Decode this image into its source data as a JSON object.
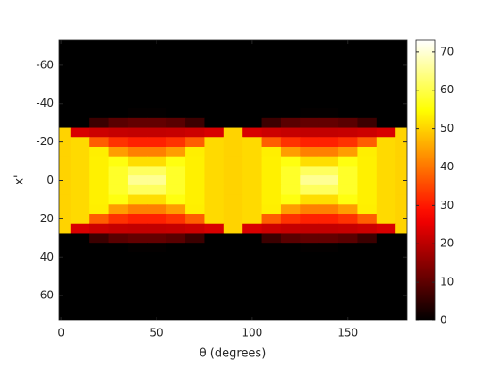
{
  "chart_data": {
    "type": "heatmap",
    "x_label": "θ (degrees)",
    "y_label": "x'",
    "colormap": "hot",
    "y_reversed": true,
    "x": [
      0,
      10,
      20,
      30,
      40,
      50,
      60,
      70,
      80,
      90,
      100,
      110,
      120,
      130,
      140,
      150,
      160,
      170,
      180
    ],
    "y": [
      -70,
      -65,
      -60,
      -55,
      -50,
      -45,
      -40,
      -35,
      -30,
      -25,
      -20,
      -15,
      -10,
      -5,
      0,
      5,
      10,
      15,
      20,
      25,
      30,
      35,
      40,
      45,
      50,
      55,
      60,
      65,
      70
    ],
    "z": [
      [
        0,
        0,
        0,
        0,
        0,
        0,
        0,
        0,
        0,
        0,
        0,
        0,
        0,
        0,
        0,
        0,
        0,
        0,
        0
      ],
      [
        0,
        0,
        0,
        0,
        0,
        0,
        0,
        0,
        0,
        0,
        0,
        0,
        0,
        0,
        0,
        0,
        0,
        0,
        0
      ],
      [
        0,
        0,
        0,
        0,
        0,
        0,
        0,
        0,
        0,
        0,
        0,
        0,
        0,
        0,
        0,
        0,
        0,
        0,
        0
      ],
      [
        0,
        0,
        0,
        0,
        0,
        0,
        0,
        0,
        0,
        0,
        0,
        0,
        0,
        0,
        0,
        0,
        0,
        0,
        0
      ],
      [
        0,
        0,
        0,
        0,
        0,
        0,
        0,
        0,
        0,
        0,
        0,
        0,
        0,
        0,
        0,
        0,
        0,
        0,
        0
      ],
      [
        0,
        0,
        0,
        0,
        0,
        0,
        0,
        0,
        0,
        0,
        0,
        0,
        0,
        0,
        0,
        0,
        0,
        0,
        0
      ],
      [
        0,
        0,
        0,
        0,
        0,
        0,
        0,
        0,
        0,
        0,
        0,
        0,
        0,
        0,
        0,
        0,
        0,
        0,
        0
      ],
      [
        0,
        0,
        0,
        0,
        0.4,
        0.4,
        0,
        0,
        0,
        0,
        0,
        0,
        0,
        0.4,
        0.4,
        0,
        0,
        0,
        0
      ],
      [
        0,
        0,
        6.3,
        9.6,
        10.6,
        10.6,
        9.6,
        6.3,
        0,
        0,
        0,
        6.3,
        9.6,
        10.6,
        10.6,
        9.6,
        6.3,
        0,
        0
      ],
      [
        50,
        23.2,
        21.9,
        21.1,
        20.8,
        20.8,
        21.1,
        21.9,
        23.2,
        50,
        23.2,
        21.9,
        21.1,
        20.8,
        20.8,
        21.1,
        21.9,
        23.2,
        50
      ],
      [
        50,
        50.8,
        37.5,
        32.7,
        30.9,
        30.9,
        32.7,
        37.5,
        50.8,
        50,
        50.8,
        37.5,
        32.7,
        30.9,
        30.9,
        32.7,
        37.5,
        50.8,
        50
      ],
      [
        50,
        50.8,
        53.0,
        44.2,
        41.1,
        41.1,
        44.2,
        53.0,
        50.8,
        50,
        50.8,
        53.0,
        44.2,
        41.1,
        41.1,
        44.2,
        53.0,
        50.8,
        50
      ],
      [
        50,
        50.8,
        53.2,
        55.8,
        51.2,
        51.2,
        55.8,
        53.2,
        50.8,
        50,
        50.8,
        53.2,
        55.8,
        51.2,
        51.2,
        55.8,
        53.2,
        50.8,
        50
      ],
      [
        50,
        50.8,
        53.2,
        57.7,
        61.4,
        61.4,
        57.7,
        53.2,
        50.8,
        50,
        50.8,
        53.2,
        57.7,
        61.4,
        61.4,
        57.7,
        53.2,
        50.8,
        50
      ],
      [
        50,
        50.8,
        53.2,
        57.7,
        65.3,
        65.3,
        57.7,
        53.2,
        50.8,
        50,
        50.8,
        53.2,
        57.7,
        65.3,
        65.3,
        57.7,
        53.2,
        50.8,
        50
      ],
      [
        50,
        50.8,
        53.2,
        57.7,
        61.4,
        61.4,
        57.7,
        53.2,
        50.8,
        50,
        50.8,
        53.2,
        57.7,
        61.4,
        61.4,
        57.7,
        53.2,
        50.8,
        50
      ],
      [
        50,
        50.8,
        53.2,
        55.8,
        51.2,
        51.2,
        55.8,
        53.2,
        50.8,
        50,
        50.8,
        53.2,
        55.8,
        51.2,
        51.2,
        55.8,
        53.2,
        50.8,
        50
      ],
      [
        50,
        50.8,
        53.0,
        44.2,
        41.1,
        41.1,
        44.2,
        53.0,
        50.8,
        50,
        50.8,
        53.0,
        44.2,
        41.1,
        41.1,
        44.2,
        53.0,
        50.8,
        50
      ],
      [
        50,
        50.8,
        37.5,
        32.7,
        30.9,
        30.9,
        32.7,
        37.5,
        50.8,
        50,
        50.8,
        37.5,
        32.7,
        30.9,
        30.9,
        32.7,
        37.5,
        50.8,
        50
      ],
      [
        50,
        23.2,
        21.9,
        21.1,
        20.8,
        20.8,
        21.1,
        21.9,
        23.2,
        50,
        23.2,
        21.9,
        21.1,
        20.8,
        20.8,
        21.1,
        21.9,
        23.2,
        50
      ],
      [
        0,
        0,
        6.3,
        9.6,
        10.6,
        10.6,
        9.6,
        6.3,
        0,
        0,
        0,
        6.3,
        9.6,
        10.6,
        10.6,
        9.6,
        6.3,
        0,
        0
      ],
      [
        0,
        0,
        0,
        0,
        0.4,
        0.4,
        0,
        0,
        0,
        0,
        0,
        0,
        0,
        0.4,
        0.4,
        0,
        0,
        0,
        0
      ],
      [
        0,
        0,
        0,
        0,
        0,
        0,
        0,
        0,
        0,
        0,
        0,
        0,
        0,
        0,
        0,
        0,
        0,
        0,
        0
      ],
      [
        0,
        0,
        0,
        0,
        0,
        0,
        0,
        0,
        0,
        0,
        0,
        0,
        0,
        0,
        0,
        0,
        0,
        0,
        0
      ],
      [
        0,
        0,
        0,
        0,
        0,
        0,
        0,
        0,
        0,
        0,
        0,
        0,
        0,
        0,
        0,
        0,
        0,
        0,
        0
      ],
      [
        0,
        0,
        0,
        0,
        0,
        0,
        0,
        0,
        0,
        0,
        0,
        0,
        0,
        0,
        0,
        0,
        0,
        0,
        0
      ],
      [
        0,
        0,
        0,
        0,
        0,
        0,
        0,
        0,
        0,
        0,
        0,
        0,
        0,
        0,
        0,
        0,
        0,
        0,
        0
      ],
      [
        0,
        0,
        0,
        0,
        0,
        0,
        0,
        0,
        0,
        0,
        0,
        0,
        0,
        0,
        0,
        0,
        0,
        0,
        0
      ],
      [
        0,
        0,
        0,
        0,
        0,
        0,
        0,
        0,
        0,
        0,
        0,
        0,
        0,
        0,
        0,
        0,
        0,
        0,
        0
      ]
    ],
    "xlim": [
      -1,
      181
    ],
    "ylim": [
      -73,
      73
    ],
    "xticks": [
      0,
      50,
      100,
      150
    ],
    "yticks": [
      -60,
      -40,
      -20,
      0,
      20,
      40,
      60
    ],
    "clim": [
      0,
      73
    ],
    "cticks": [
      0,
      10,
      20,
      30,
      40,
      50,
      60,
      70
    ]
  }
}
